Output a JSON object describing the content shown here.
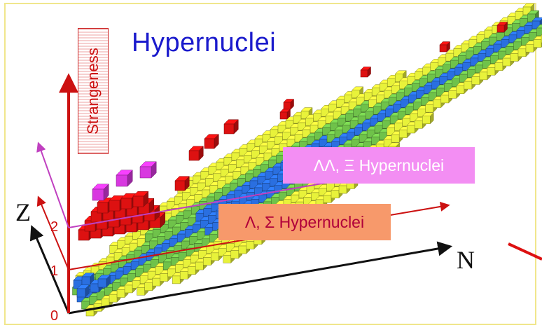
{
  "title": "Hypernuclei",
  "strangeness_label": "Strangeness",
  "labels": {
    "double": "ΛΛ, Ξ Hypernuclei",
    "single": "Λ, Σ Hypernuclei"
  },
  "axes": {
    "z": "Z",
    "n": "N",
    "ticks": [
      "0",
      "1",
      "2"
    ]
  },
  "colors": {
    "title": "#1a1acc",
    "strangeness_axis": "#cc1111",
    "double_box": "#f38ef3",
    "single_box": "#f7996b",
    "red_cubes": "#dd1111",
    "magenta_cubes": "#d838e0",
    "nuclide_yellow": "#e8f23a",
    "nuclide_green": "#6fc24a",
    "nuclide_blue": "#2a6fe0"
  }
}
